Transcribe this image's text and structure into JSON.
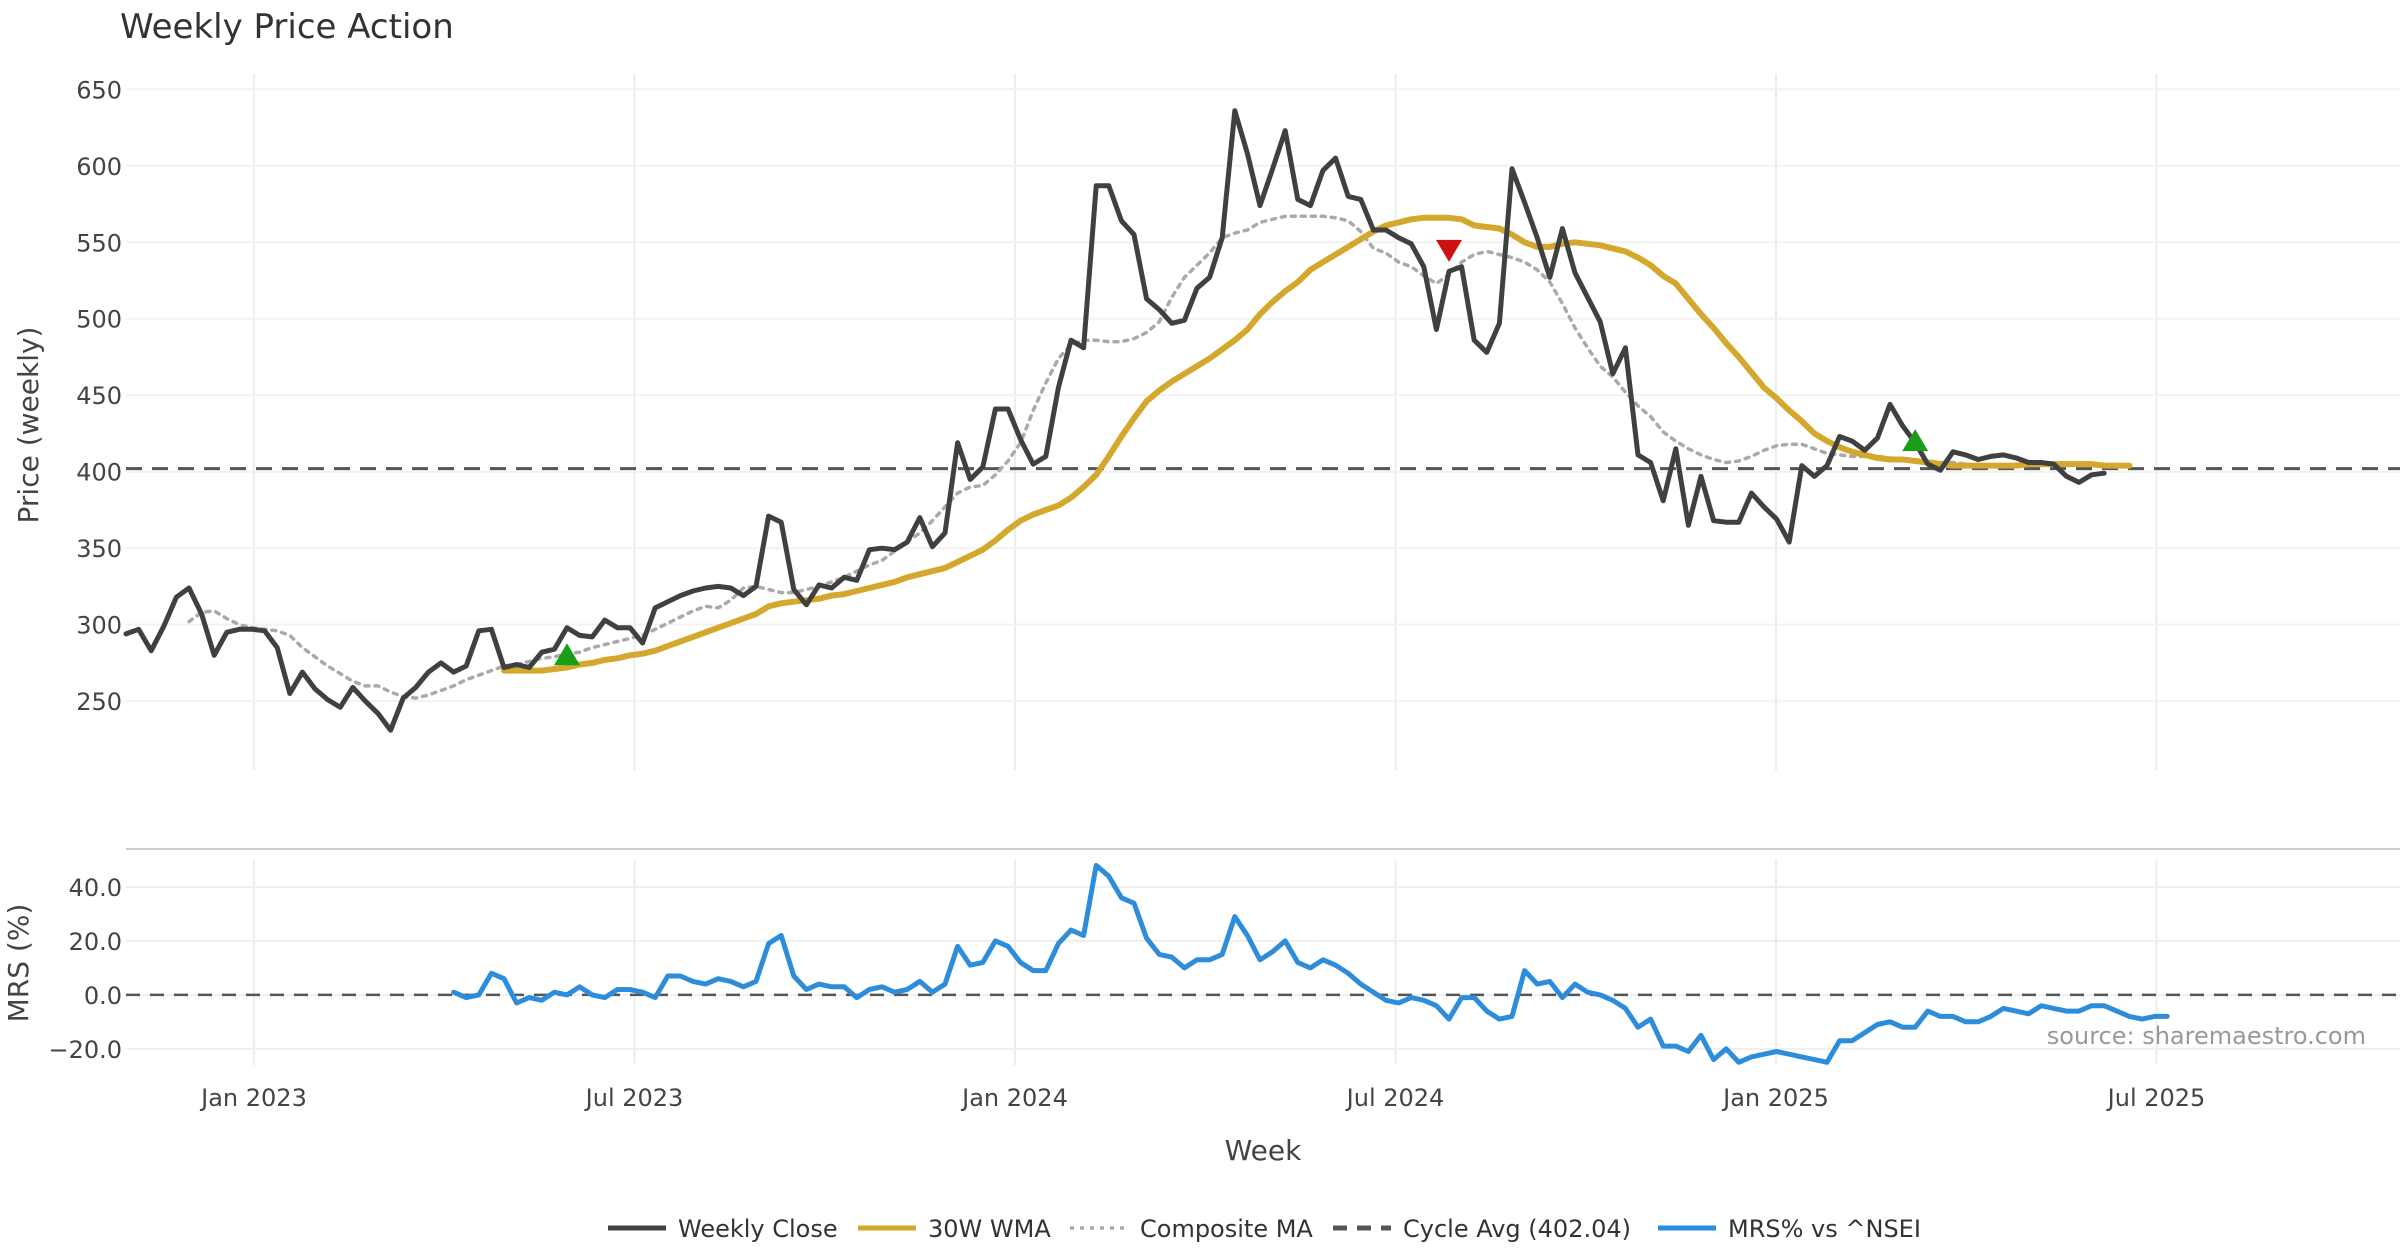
{
  "chart_data": [
    {
      "type": "line",
      "title": "Weekly Price Action",
      "ylabel": "Price (weekly)",
      "xlabel": "Week",
      "ylim": [
        205,
        660
      ],
      "yticks": [
        250,
        300,
        350,
        400,
        450,
        500,
        550,
        600,
        650
      ],
      "x_ticks": [
        "Jan 2023",
        "Jul 2023",
        "Jan 2024",
        "Jul 2024",
        "Jan 2025",
        "Jul 2025"
      ],
      "cycle_avg": 402.04,
      "series": [
        {
          "name": "Weekly Close",
          "color": "#404040",
          "values": [
            294,
            297,
            283,
            299,
            318,
            324,
            307,
            280,
            295,
            297,
            297,
            296,
            285,
            255,
            269,
            258,
            251,
            246,
            259,
            250,
            242,
            231,
            252,
            259,
            269,
            275,
            269,
            273,
            296,
            297,
            272,
            274,
            272,
            282,
            284,
            298,
            293,
            292,
            303,
            298,
            298,
            288,
            311,
            315,
            319,
            322,
            324,
            325,
            324,
            319,
            325,
            371,
            367,
            323,
            313,
            326,
            324,
            331,
            329,
            349,
            350,
            349,
            354,
            370,
            351,
            360,
            419,
            395,
            403,
            441,
            441,
            421,
            405,
            410,
            455,
            486,
            481,
            587,
            587,
            564,
            555,
            513,
            506,
            497,
            499,
            520,
            527,
            553,
            636,
            608,
            574,
            598,
            623,
            578,
            574,
            597,
            605,
            580,
            578,
            558,
            558,
            553,
            549,
            534,
            493,
            531,
            534,
            486,
            478,
            497,
            598,
            576,
            553,
            527,
            559,
            530,
            514,
            498,
            464,
            481,
            411,
            406,
            381,
            415,
            365,
            397,
            368,
            367,
            367,
            386,
            377,
            369,
            354,
            404,
            397,
            404,
            423,
            420,
            414,
            422,
            444,
            430,
            419,
            405,
            401,
            413,
            411,
            408,
            410,
            411,
            409,
            406,
            406,
            405,
            397,
            393,
            398,
            399
          ]
        },
        {
          "name": "30W WMA",
          "color": "#d4a82c",
          "start_index": 30,
          "values": [
            270,
            270,
            270,
            270,
            271,
            272,
            274,
            275,
            277,
            278,
            280,
            281,
            283,
            286,
            289,
            292,
            295,
            298,
            301,
            304,
            307,
            312,
            314,
            315,
            316,
            317,
            319,
            320,
            322,
            324,
            326,
            328,
            331,
            333,
            335,
            337,
            341,
            345,
            349,
            355,
            362,
            368,
            372,
            375,
            378,
            383,
            390,
            398,
            410,
            423,
            435,
            446,
            453,
            459,
            464,
            469,
            474,
            480,
            486,
            493,
            503,
            511,
            518,
            524,
            532,
            537,
            542,
            547,
            552,
            557,
            561,
            563,
            565,
            566,
            566,
            566,
            565,
            561,
            560,
            559,
            555,
            550,
            547,
            547,
            549,
            550,
            549,
            548,
            546,
            544,
            540,
            535,
            528,
            523,
            513,
            503,
            494,
            484,
            475,
            465,
            455,
            448,
            440,
            433,
            425,
            420,
            416,
            413,
            411,
            409,
            408,
            408,
            407,
            406,
            405,
            404,
            404,
            404,
            404,
            404,
            404,
            405,
            405,
            405,
            405,
            405,
            405,
            404,
            404,
            404
          ]
        },
        {
          "name": "Composite MA",
          "color": "#aaaaaa",
          "start_index": 5,
          "values": [
            302,
            308,
            309,
            304,
            300,
            298,
            297,
            296,
            293,
            285,
            279,
            273,
            268,
            263,
            260,
            260,
            256,
            253,
            252,
            254,
            257,
            260,
            264,
            267,
            270,
            273,
            274,
            276,
            278,
            279,
            281,
            282,
            285,
            287,
            289,
            291,
            293,
            297,
            301,
            305,
            309,
            312,
            311,
            316,
            324,
            325,
            323,
            321,
            321,
            323,
            325,
            328,
            331,
            335,
            339,
            342,
            348,
            354,
            360,
            368,
            377,
            386,
            390,
            391,
            398,
            407,
            419,
            440,
            458,
            474,
            483,
            486,
            486,
            485,
            485,
            487,
            491,
            498,
            514,
            527,
            535,
            543,
            553,
            556,
            558,
            563,
            565,
            567,
            567,
            567,
            567,
            566,
            564,
            557,
            546,
            543,
            537,
            534,
            528,
            523,
            529,
            537,
            542,
            544,
            542,
            540,
            537,
            532,
            524,
            510,
            494,
            481,
            469,
            462,
            452,
            443,
            436,
            426,
            420,
            415,
            411,
            408,
            406,
            407,
            410,
            414,
            417,
            418,
            418,
            415,
            412,
            411,
            410,
            410,
            410,
            409,
            408,
            407,
            407,
            406,
            406,
            405
          ]
        },
        {
          "name": "Cycle Avg (402.04)",
          "color": "#555555",
          "values": [
            402.04
          ]
        }
      ],
      "markers": [
        {
          "type": "buy",
          "shape": "triangle-up",
          "color": "#1a9e1a",
          "index": 35,
          "value": 280
        },
        {
          "type": "sell",
          "shape": "triangle-down",
          "color": "#cc1111",
          "index": 105,
          "value": 545
        },
        {
          "type": "buy",
          "shape": "triangle-up",
          "color": "#1a9e1a",
          "index": 142,
          "value": 420
        }
      ]
    },
    {
      "type": "line",
      "ylabel": "MRS (%)",
      "ylim": [
        -26,
        50
      ],
      "yticks": [
        -20,
        0,
        20,
        40
      ],
      "ytick_labels": [
        "−20.0",
        "0.0",
        "20.0",
        "40.0"
      ],
      "source": "source: sharemaestro.com",
      "series": [
        {
          "name": "MRS% vs ^NSEI",
          "color": "#2e8ddb",
          "start_index": 26,
          "values": [
            1,
            -1,
            0,
            8,
            6,
            -3,
            -1,
            -2,
            1,
            0,
            3,
            0,
            -1,
            2,
            2,
            1,
            -1,
            7,
            7,
            5,
            4,
            6,
            5,
            3,
            5,
            19,
            22,
            7,
            2,
            4,
            3,
            3,
            -1,
            2,
            3,
            1,
            2,
            5,
            1,
            4,
            18,
            11,
            12,
            20,
            18,
            12,
            9,
            9,
            19,
            24,
            22,
            48,
            44,
            36,
            34,
            21,
            15,
            14,
            10,
            13,
            13,
            15,
            29,
            22,
            13,
            16,
            20,
            12,
            10,
            13,
            11,
            8,
            4,
            1,
            -2,
            -3,
            -1,
            -2,
            -4,
            -9,
            -1,
            -1,
            -6,
            -9,
            -8,
            9,
            4,
            5,
            -1,
            4,
            1,
            0,
            -2,
            -5,
            -12,
            -9,
            -19,
            -19,
            -21,
            -15,
            -24,
            -20,
            -25,
            -23,
            -22,
            -21,
            -22,
            -23,
            -24,
            -25,
            -17,
            -17,
            -14,
            -11,
            -10,
            -12,
            -12,
            -6,
            -8,
            -8,
            -10,
            -10,
            -8,
            -5,
            -6,
            -7,
            -4,
            -5,
            -6,
            -6,
            -4,
            -4,
            -6,
            -8,
            -9,
            -8,
            -8
          ]
        }
      ]
    }
  ],
  "legend": [
    {
      "label": "Weekly Close",
      "color": "#404040",
      "style": "solid"
    },
    {
      "label": "30W WMA",
      "color": "#d4a82c",
      "style": "solid"
    },
    {
      "label": "Composite MA",
      "color": "#aaaaaa",
      "style": "dotted"
    },
    {
      "label": "Cycle Avg (402.04)",
      "color": "#555555",
      "style": "dashed"
    },
    {
      "label": "MRS% vs ^NSEI",
      "color": "#2e8ddb",
      "style": "solid"
    }
  ]
}
